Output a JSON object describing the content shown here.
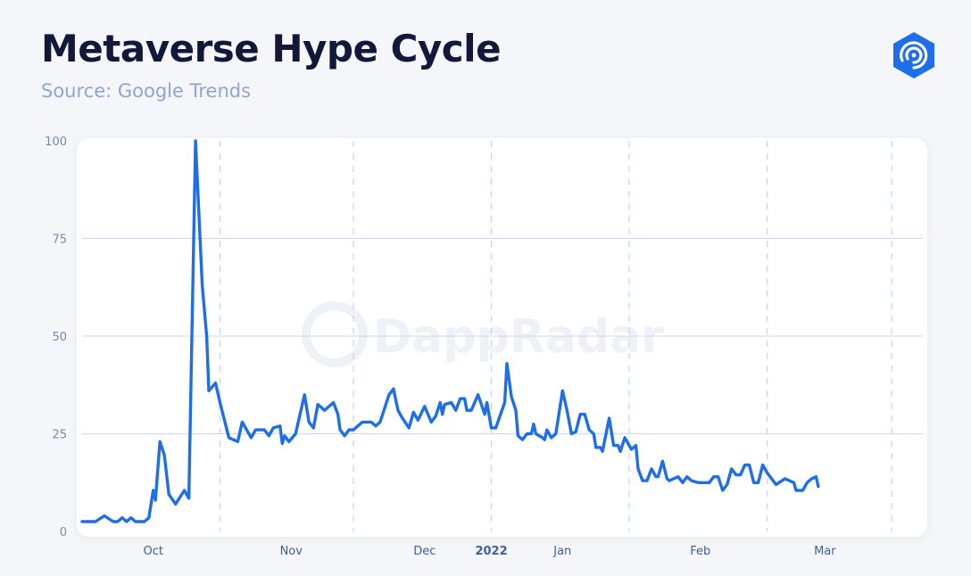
{
  "header": {
    "title": "Metaverse Hype Cycle",
    "subtitle": "Source: Google Trends",
    "logo_icon": "dappradar-logo-icon",
    "logo_color": "#1e6ee8"
  },
  "watermark": {
    "text": "DappRadar"
  },
  "chart_data": {
    "type": "line",
    "title": "Metaverse Hype Cycle",
    "subtitle": "Source: Google Trends",
    "xlabel": "",
    "ylabel": "",
    "ylim": [
      0,
      100
    ],
    "yticks": [
      0,
      25,
      50,
      75,
      100
    ],
    "grid": true,
    "legend": "none",
    "line_color": "#1e6ee8",
    "x_tick_labels": [
      {
        "label": "Oct",
        "day": 16,
        "bold": false
      },
      {
        "label": "Nov",
        "day": 47,
        "bold": false
      },
      {
        "label": "Dec",
        "day": 77,
        "bold": false
      },
      {
        "label": "2022",
        "day": 92,
        "bold": true
      },
      {
        "label": "Jan",
        "day": 108,
        "bold": false
      },
      {
        "label": "Feb",
        "day": 139,
        "bold": false
      },
      {
        "label": "Mar",
        "day": 167,
        "bold": false
      }
    ],
    "x_grid_days": [
      31,
      61,
      92,
      123,
      154,
      182
    ],
    "x_range_days": [
      0,
      189
    ],
    "series": [
      {
        "values": [
          [
            0,
            2.5
          ],
          [
            3,
            2.5
          ],
          [
            5,
            4
          ],
          [
            7,
            2.5
          ],
          [
            8,
            2.5
          ],
          [
            9,
            3.5
          ],
          [
            10,
            2.5
          ],
          [
            11,
            3.5
          ],
          [
            12,
            2.5
          ],
          [
            14,
            2.5
          ],
          [
            15,
            3.5
          ],
          [
            16,
            10.5
          ],
          [
            16.5,
            8
          ],
          [
            17.5,
            23
          ],
          [
            18.5,
            19.5
          ],
          [
            19.5,
            9.5
          ],
          [
            21,
            7
          ],
          [
            23,
            10.5
          ],
          [
            24,
            8.5
          ],
          [
            25.5,
            100
          ],
          [
            27,
            63
          ],
          [
            28,
            50
          ],
          [
            28.5,
            36
          ],
          [
            30,
            38
          ],
          [
            31,
            33
          ],
          [
            33,
            24
          ],
          [
            35,
            23
          ],
          [
            36,
            28
          ],
          [
            38,
            24
          ],
          [
            39,
            26
          ],
          [
            41,
            26
          ],
          [
            42,
            24.5
          ],
          [
            43,
            26.5
          ],
          [
            44.5,
            27
          ],
          [
            45,
            22.5
          ],
          [
            45.5,
            24.5
          ],
          [
            46.5,
            23
          ],
          [
            48,
            25
          ],
          [
            50,
            35
          ],
          [
            51,
            28
          ],
          [
            52,
            26.5
          ],
          [
            53,
            32.5
          ],
          [
            54.5,
            31
          ],
          [
            56.5,
            33
          ],
          [
            57.5,
            30
          ],
          [
            58,
            26
          ],
          [
            59,
            24.5
          ],
          [
            60,
            26
          ],
          [
            61,
            26
          ],
          [
            62,
            27
          ],
          [
            63,
            28
          ],
          [
            65,
            28
          ],
          [
            66,
            27
          ],
          [
            67,
            28
          ],
          [
            69,
            35
          ],
          [
            70,
            36.5
          ],
          [
            71,
            31
          ],
          [
            72,
            29
          ],
          [
            73.5,
            26.5
          ],
          [
            74.5,
            30.5
          ],
          [
            75.5,
            28.5
          ],
          [
            77,
            32
          ],
          [
            78.5,
            28
          ],
          [
            79.5,
            29.5
          ],
          [
            80.5,
            33
          ],
          [
            81,
            30
          ],
          [
            81.5,
            32.5
          ],
          [
            83,
            33
          ],
          [
            84,
            31
          ],
          [
            85,
            34
          ],
          [
            86,
            34
          ],
          [
            86.5,
            31
          ],
          [
            87.5,
            31
          ],
          [
            89,
            35
          ],
          [
            90.5,
            30
          ],
          [
            91,
            33
          ],
          [
            92,
            26.5
          ],
          [
            93,
            26.5
          ],
          [
            95,
            33
          ],
          [
            95.5,
            43
          ],
          [
            96.5,
            34.5
          ],
          [
            97.5,
            31
          ],
          [
            98,
            24.5
          ],
          [
            99,
            23.5
          ],
          [
            100,
            25
          ],
          [
            101,
            25
          ],
          [
            101.5,
            27.5
          ],
          [
            102,
            25
          ],
          [
            103.5,
            24
          ],
          [
            104,
            23.5
          ],
          [
            104.5,
            26
          ],
          [
            105.5,
            24
          ],
          [
            106.5,
            25
          ],
          [
            108,
            36
          ],
          [
            109,
            31
          ],
          [
            110,
            25
          ],
          [
            111,
            25.5
          ],
          [
            112,
            30
          ],
          [
            113,
            30
          ],
          [
            114,
            26
          ],
          [
            115,
            25
          ],
          [
            115.5,
            21.5
          ],
          [
            116.5,
            21.5
          ],
          [
            117,
            20.5
          ],
          [
            118.5,
            29
          ],
          [
            119.5,
            22
          ],
          [
            120.5,
            22
          ],
          [
            121,
            20.5
          ],
          [
            122,
            24
          ],
          [
            123.5,
            21
          ],
          [
            124.5,
            22
          ],
          [
            125,
            16
          ],
          [
            126,
            13
          ],
          [
            127,
            13
          ],
          [
            128,
            16
          ],
          [
            129,
            14
          ],
          [
            129.5,
            14
          ],
          [
            130.5,
            18
          ],
          [
            131.5,
            13.5
          ],
          [
            132,
            13
          ],
          [
            134,
            14
          ],
          [
            135,
            12.5
          ],
          [
            136,
            14
          ],
          [
            137,
            13
          ],
          [
            138.5,
            12.5
          ],
          [
            140,
            12.5
          ],
          [
            141,
            12.5
          ],
          [
            142,
            14
          ],
          [
            143,
            14
          ],
          [
            144,
            10.5
          ],
          [
            145,
            12
          ],
          [
            146,
            16
          ],
          [
            147,
            14.5
          ],
          [
            148,
            14.5
          ],
          [
            149,
            17
          ],
          [
            150,
            17
          ],
          [
            151,
            12.5
          ],
          [
            152,
            12.5
          ],
          [
            153,
            17
          ],
          [
            154,
            15
          ],
          [
            156,
            12
          ],
          [
            158,
            13.5
          ],
          [
            160,
            12.5
          ],
          [
            160.5,
            10.5
          ],
          [
            162,
            10.5
          ],
          [
            163,
            12.5
          ],
          [
            164,
            13.5
          ],
          [
            165,
            14
          ],
          [
            165.5,
            11.5
          ]
        ]
      }
    ]
  }
}
